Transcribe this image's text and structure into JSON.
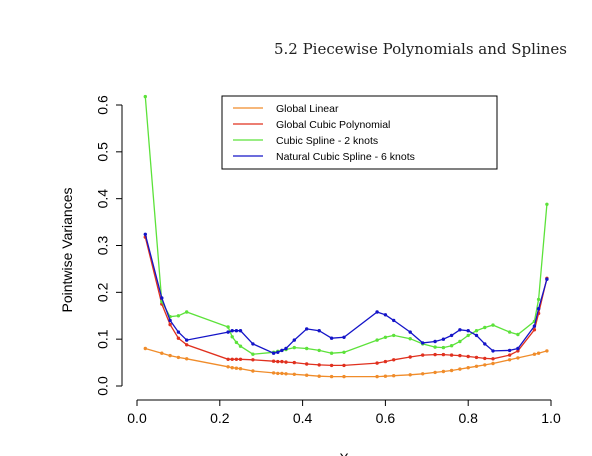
{
  "header": {
    "text": "5.2 Piecewise Polynomials and Splines"
  },
  "chart_data": {
    "type": "line",
    "title": "",
    "xlabel": "X",
    "ylabel": "Pointwise Variances",
    "xlim": [
      0.0,
      1.0
    ],
    "ylim": [
      0.0,
      0.6
    ],
    "xticks": [
      "0.0",
      "0.2",
      "0.4",
      "0.6",
      "0.8",
      "1.0"
    ],
    "yticks": [
      "0.0",
      "0.1",
      "0.2",
      "0.3",
      "0.4",
      "0.5",
      "0.6"
    ],
    "grid": false,
    "legend_position": "top-center",
    "series": [
      {
        "name": "Global Linear",
        "color": "#f08c2a",
        "x": [
          0.02,
          0.06,
          0.08,
          0.1,
          0.12,
          0.22,
          0.23,
          0.24,
          0.25,
          0.28,
          0.33,
          0.34,
          0.35,
          0.36,
          0.38,
          0.41,
          0.44,
          0.47,
          0.5,
          0.58,
          0.6,
          0.62,
          0.66,
          0.69,
          0.72,
          0.74,
          0.76,
          0.78,
          0.8,
          0.82,
          0.84,
          0.86,
          0.9,
          0.92,
          0.96,
          0.97,
          0.99
        ],
        "y": [
          0.08,
          0.07,
          0.065,
          0.061,
          0.058,
          0.041,
          0.039,
          0.038,
          0.037,
          0.032,
          0.028,
          0.027,
          0.027,
          0.026,
          0.025,
          0.023,
          0.021,
          0.02,
          0.02,
          0.02,
          0.021,
          0.022,
          0.024,
          0.026,
          0.029,
          0.031,
          0.033,
          0.036,
          0.039,
          0.042,
          0.045,
          0.048,
          0.056,
          0.06,
          0.068,
          0.07,
          0.075
        ]
      },
      {
        "name": "Global Cubic Polynomial",
        "color": "#e0301e",
        "x": [
          0.02,
          0.06,
          0.08,
          0.1,
          0.12,
          0.22,
          0.23,
          0.24,
          0.25,
          0.28,
          0.33,
          0.34,
          0.35,
          0.36,
          0.38,
          0.41,
          0.44,
          0.47,
          0.5,
          0.58,
          0.6,
          0.62,
          0.66,
          0.69,
          0.72,
          0.74,
          0.76,
          0.78,
          0.8,
          0.82,
          0.84,
          0.86,
          0.9,
          0.92,
          0.96,
          0.97,
          0.99
        ],
        "y": [
          0.318,
          0.175,
          0.131,
          0.102,
          0.088,
          0.057,
          0.057,
          0.057,
          0.057,
          0.056,
          0.053,
          0.052,
          0.052,
          0.051,
          0.05,
          0.047,
          0.045,
          0.044,
          0.044,
          0.049,
          0.052,
          0.056,
          0.062,
          0.066,
          0.067,
          0.067,
          0.066,
          0.065,
          0.063,
          0.061,
          0.059,
          0.058,
          0.066,
          0.075,
          0.12,
          0.155,
          0.23
        ]
      },
      {
        "name": "Cubic Spline - 2 knots",
        "color": "#5ce23a",
        "x": [
          0.02,
          0.06,
          0.08,
          0.1,
          0.12,
          0.22,
          0.23,
          0.24,
          0.25,
          0.28,
          0.33,
          0.34,
          0.35,
          0.36,
          0.38,
          0.41,
          0.44,
          0.47,
          0.5,
          0.58,
          0.6,
          0.62,
          0.66,
          0.69,
          0.72,
          0.74,
          0.76,
          0.78,
          0.8,
          0.82,
          0.84,
          0.86,
          0.9,
          0.92,
          0.96,
          0.97,
          0.99
        ],
        "y": [
          0.618,
          0.18,
          0.148,
          0.15,
          0.158,
          0.126,
          0.105,
          0.093,
          0.085,
          0.068,
          0.072,
          0.074,
          0.076,
          0.078,
          0.082,
          0.08,
          0.076,
          0.07,
          0.072,
          0.098,
          0.104,
          0.108,
          0.101,
          0.09,
          0.083,
          0.082,
          0.086,
          0.095,
          0.108,
          0.118,
          0.125,
          0.13,
          0.115,
          0.11,
          0.138,
          0.185,
          0.388
        ]
      },
      {
        "name": "Natural Cubic Spline - 6 knots",
        "color": "#1414c8",
        "x": [
          0.02,
          0.06,
          0.08,
          0.1,
          0.12,
          0.22,
          0.23,
          0.24,
          0.25,
          0.28,
          0.33,
          0.34,
          0.35,
          0.36,
          0.38,
          0.41,
          0.44,
          0.47,
          0.5,
          0.58,
          0.6,
          0.62,
          0.66,
          0.69,
          0.72,
          0.74,
          0.76,
          0.78,
          0.8,
          0.82,
          0.84,
          0.86,
          0.9,
          0.92,
          0.96,
          0.97,
          0.99
        ],
        "y": [
          0.324,
          0.188,
          0.14,
          0.115,
          0.098,
          0.115,
          0.118,
          0.118,
          0.118,
          0.09,
          0.07,
          0.072,
          0.076,
          0.08,
          0.098,
          0.122,
          0.118,
          0.102,
          0.104,
          0.158,
          0.152,
          0.14,
          0.115,
          0.092,
          0.095,
          0.1,
          0.108,
          0.12,
          0.118,
          0.108,
          0.09,
          0.075,
          0.076,
          0.08,
          0.128,
          0.165,
          0.228
        ]
      }
    ]
  }
}
